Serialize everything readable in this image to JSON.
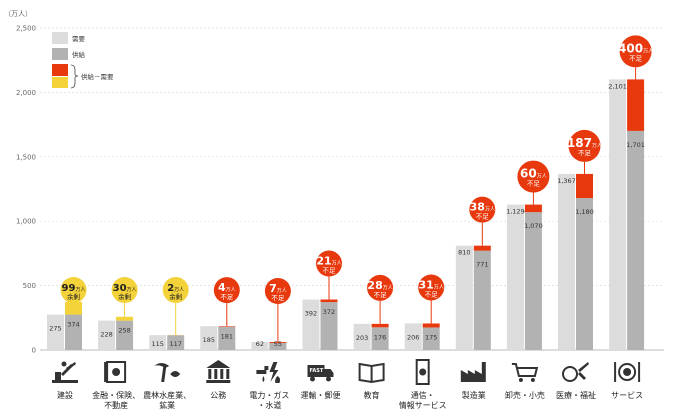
{
  "chart_data": {
    "type": "bar",
    "unit_label": "（万人）",
    "yticks": [
      "0",
      "500",
      "1,000",
      "1,500",
      "2,000",
      "2,500"
    ],
    "ylim": [
      0,
      2500
    ],
    "legend": {
      "demand": "需要",
      "supply": "供給",
      "gap": "供給－需要"
    },
    "colors": {
      "demand": "#dcdcdc",
      "supply": "#b2b2b2",
      "shortage": "#e8380d",
      "surplus": "#f3d23a"
    },
    "categories": [
      {
        "label": [
          "建設"
        ],
        "icon": "construction-icon",
        "demand": 275,
        "supply": 374,
        "demand_label": "275",
        "supply_label": "374",
        "gap_kind": "surplus",
        "gap_value": "99",
        "gap_unit": "万人",
        "gap_text": "余剰"
      },
      {
        "label": [
          "金融・保険、",
          "不動産"
        ],
        "icon": "finance-icon",
        "demand": 228,
        "supply": 258,
        "demand_label": "228",
        "supply_label": "258",
        "gap_kind": "surplus",
        "gap_value": "30",
        "gap_unit": "万人",
        "gap_text": "余剰"
      },
      {
        "label": [
          "農林水産業、",
          "鉱業"
        ],
        "icon": "agriculture-icon",
        "demand": 115,
        "supply": 117,
        "demand_label": "115",
        "supply_label": "117",
        "gap_kind": "surplus",
        "gap_value": "2",
        "gap_unit": "万人",
        "gap_text": "余剰"
      },
      {
        "label": [
          "公務"
        ],
        "icon": "public-office-icon",
        "demand": 185,
        "supply": 181,
        "demand_label": "185",
        "supply_label": "181",
        "gap_kind": "shortage",
        "gap_value": "4",
        "gap_unit": "万人",
        "gap_text": "不足"
      },
      {
        "label": [
          "電力・ガス",
          "・水道"
        ],
        "icon": "utilities-icon",
        "demand": 62,
        "supply": 55,
        "demand_label": "62",
        "supply_label": "55",
        "gap_kind": "shortage",
        "gap_value": "7",
        "gap_unit": "万人",
        "gap_text": "不足"
      },
      {
        "label": [
          "運輸・郵便"
        ],
        "icon": "delivery-truck-icon",
        "demand": 392,
        "supply": 372,
        "demand_label": "392",
        "supply_label": "372",
        "gap_kind": "shortage",
        "gap_value": "21",
        "gap_unit": "万人",
        "gap_text": "不足"
      },
      {
        "label": [
          "教育"
        ],
        "icon": "book-icon",
        "demand": 203,
        "supply": 176,
        "demand_label": "203",
        "supply_label": "176",
        "gap_kind": "shortage",
        "gap_value": "28",
        "gap_unit": "万人",
        "gap_text": "不足"
      },
      {
        "label": [
          "通信・",
          "情報サービス"
        ],
        "icon": "smartphone-icon",
        "demand": 206,
        "supply": 175,
        "demand_label": "206",
        "supply_label": "175",
        "gap_kind": "shortage",
        "gap_value": "31",
        "gap_unit": "万人",
        "gap_text": "不足"
      },
      {
        "label": [
          "製造業"
        ],
        "icon": "factory-icon",
        "demand": 810,
        "supply": 771,
        "demand_label": "810",
        "supply_label": "771",
        "gap_kind": "shortage",
        "gap_value": "38",
        "gap_unit": "万人",
        "gap_text": "不足"
      },
      {
        "label": [
          "卸売・小売"
        ],
        "icon": "shopping-cart-icon",
        "demand": 1129,
        "supply": 1070,
        "demand_label": "1,129",
        "supply_label": "1,070",
        "gap_kind": "shortage",
        "gap_value": "60",
        "gap_unit": "万人",
        "gap_text": "不足"
      },
      {
        "label": [
          "医療・福祉"
        ],
        "icon": "medical-icon",
        "demand": 1367,
        "supply": 1180,
        "demand_label": "1,367",
        "supply_label": "1,180",
        "gap_kind": "shortage",
        "gap_value": "187",
        "gap_unit": "万人",
        "gap_text": "不足"
      },
      {
        "label": [
          "サービス"
        ],
        "icon": "dining-icon",
        "demand": 2101,
        "supply": 1701,
        "demand_label": "2,101",
        "supply_label": "1,701",
        "gap_kind": "shortage",
        "gap_value": "400",
        "gap_unit": "万人",
        "gap_text": "不足"
      }
    ]
  }
}
